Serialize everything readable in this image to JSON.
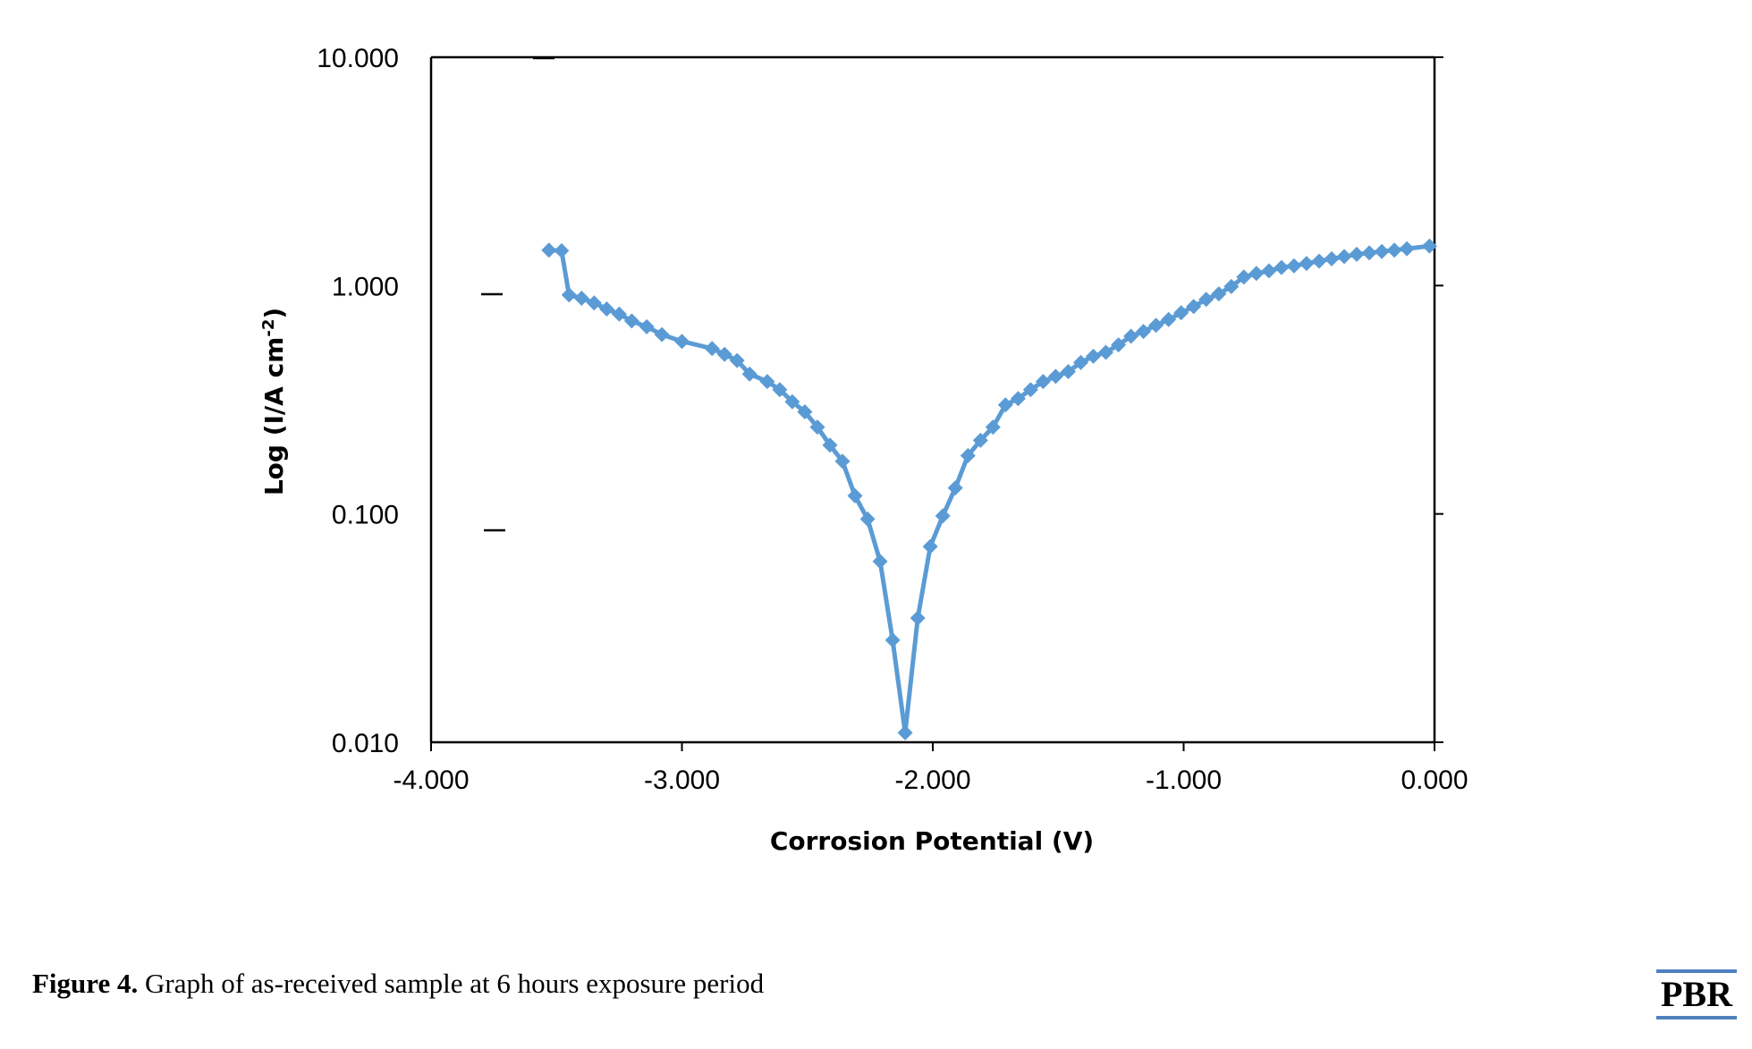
{
  "chart_data": {
    "type": "line",
    "title": "",
    "xlabel": "Corrosion Potential (V)",
    "ylabel_parts": {
      "main": "Log (I/A cm",
      "sup": "-2",
      "close": ")"
    },
    "y_scale": "log",
    "xlim": [
      -4.0,
      0.0
    ],
    "ylim": [
      0.01,
      10.0
    ],
    "x_ticks": [
      {
        "value": -4.0,
        "label": "-4.000"
      },
      {
        "value": -3.0,
        "label": "-3.000"
      },
      {
        "value": -2.0,
        "label": "-2.000"
      },
      {
        "value": -1.0,
        "label": "-1.000"
      },
      {
        "value": 0.0,
        "label": "0.000"
      }
    ],
    "y_ticks": [
      {
        "value": 10.0,
        "label": "10.000"
      },
      {
        "value": 1.0,
        "label": "1.000"
      },
      {
        "value": 0.1,
        "label": "0.100"
      },
      {
        "value": 0.01,
        "label": "0.010"
      }
    ],
    "grid": false,
    "legend": "none",
    "marker": "diamond",
    "series": [
      {
        "color": "#5B9BD5",
        "x": [
          -3.53,
          -3.48,
          -3.45,
          -3.4,
          -3.35,
          -3.3,
          -3.25,
          -3.2,
          -3.14,
          -3.08,
          -3.0,
          -2.88,
          -2.83,
          -2.78,
          -2.73,
          -2.66,
          -2.61,
          -2.56,
          -2.51,
          -2.46,
          -2.41,
          -2.36,
          -2.31,
          -2.26,
          -2.21,
          -2.16,
          -2.11,
          -2.06,
          -2.01,
          -1.96,
          -1.91,
          -1.86,
          -1.81,
          -1.76,
          -1.71,
          -1.66,
          -1.61,
          -1.56,
          -1.51,
          -1.46,
          -1.41,
          -1.36,
          -1.31,
          -1.26,
          -1.21,
          -1.16,
          -1.11,
          -1.06,
          -1.01,
          -0.96,
          -0.91,
          -0.86,
          -0.81,
          -0.76,
          -0.71,
          -0.66,
          -0.61,
          -0.56,
          -0.51,
          -0.46,
          -0.41,
          -0.36,
          -0.31,
          -0.26,
          -0.21,
          -0.16,
          -0.11,
          -0.02
        ],
        "y": [
          1.43,
          1.42,
          0.91,
          0.88,
          0.84,
          0.79,
          0.75,
          0.7,
          0.66,
          0.61,
          0.57,
          0.53,
          0.5,
          0.47,
          0.41,
          0.38,
          0.35,
          0.31,
          0.28,
          0.24,
          0.2,
          0.17,
          0.12,
          0.095,
          0.062,
          0.028,
          0.011,
          0.035,
          0.072,
          0.098,
          0.13,
          0.18,
          0.21,
          0.24,
          0.3,
          0.32,
          0.35,
          0.38,
          0.4,
          0.42,
          0.46,
          0.49,
          0.51,
          0.55,
          0.6,
          0.63,
          0.67,
          0.71,
          0.76,
          0.81,
          0.87,
          0.92,
          0.99,
          1.09,
          1.13,
          1.16,
          1.2,
          1.22,
          1.25,
          1.28,
          1.31,
          1.34,
          1.37,
          1.39,
          1.41,
          1.43,
          1.45,
          1.49
        ]
      }
    ]
  },
  "caption": {
    "label": "Figure 4.",
    "text": " Graph of as-received sample at 6 hours exposure period"
  },
  "logo": {
    "text": "PBR",
    "bar_color": "#4F81BD"
  }
}
